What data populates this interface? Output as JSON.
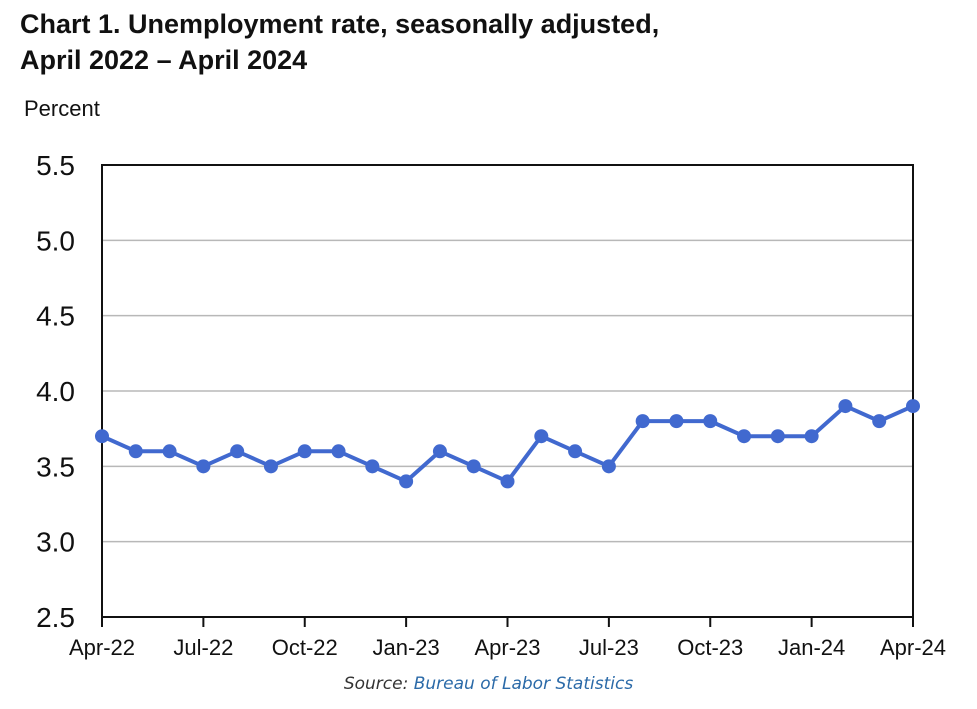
{
  "chart_data": {
    "type": "line",
    "title_line1": "Chart 1. Unemployment rate, seasonally adjusted,",
    "title_line2": "April 2022 – April 2024",
    "ylabel": "Percent",
    "xlabel": "",
    "ylim": [
      2.5,
      5.5
    ],
    "yticks": [
      "5.5",
      "5.0",
      "4.5",
      "4.0",
      "3.5",
      "3.0",
      "2.5"
    ],
    "ytick_values": [
      5.5,
      5.0,
      4.5,
      4.0,
      3.5,
      3.0,
      2.5
    ],
    "x": [
      "Apr-22",
      "May-22",
      "Jun-22",
      "Jul-22",
      "Aug-22",
      "Sep-22",
      "Oct-22",
      "Nov-22",
      "Dec-22",
      "Jan-23",
      "Feb-23",
      "Mar-23",
      "Apr-23",
      "May-23",
      "Jun-23",
      "Jul-23",
      "Aug-23",
      "Sep-23",
      "Oct-23",
      "Nov-23",
      "Dec-23",
      "Jan-24",
      "Feb-24",
      "Mar-24",
      "Apr-24"
    ],
    "xtick_labels": [
      "Apr-22",
      "Jul-22",
      "Oct-22",
      "Jan-23",
      "Apr-23",
      "Jul-23",
      "Oct-23",
      "Jan-24",
      "Apr-24"
    ],
    "xtick_indices": [
      0,
      3,
      6,
      9,
      12,
      15,
      18,
      21,
      24
    ],
    "series": [
      {
        "values": [
          3.7,
          3.6,
          3.6,
          3.5,
          3.6,
          3.5,
          3.6,
          3.6,
          3.5,
          3.4,
          3.6,
          3.5,
          3.4,
          3.7,
          3.6,
          3.5,
          3.8,
          3.8,
          3.8,
          3.7,
          3.7,
          3.7,
          3.9,
          3.8,
          3.9
        ]
      }
    ],
    "grid": true,
    "legend": "none",
    "colors": {
      "line": "#4169cf",
      "grid": "#b8b8b8",
      "axis": "#111111"
    }
  },
  "footer": {
    "source_prefix": "Source: ",
    "source_link": "Bureau of Labor Statistics"
  }
}
